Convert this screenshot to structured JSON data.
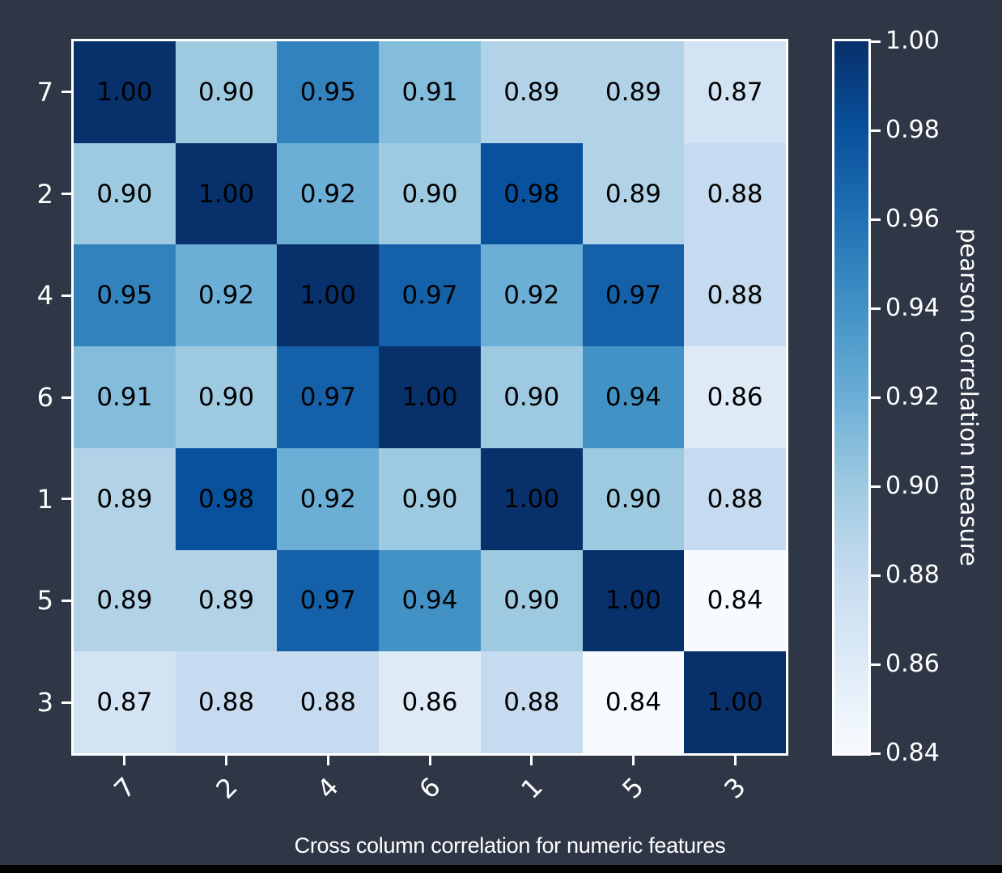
{
  "colors": {
    "background": "#2f3746",
    "axis": "#ffffff",
    "cell_text": "#000000",
    "bottom_bar": "#000000"
  },
  "chart_data": {
    "type": "heatmap",
    "title": "Cross column correlation for numeric features",
    "colorbar_label": "pearson correlation measure",
    "row_labels": [
      "7",
      "2",
      "4",
      "6",
      "1",
      "5",
      "3"
    ],
    "col_labels": [
      "7",
      "2",
      "4",
      "6",
      "1",
      "5",
      "3"
    ],
    "matrix": [
      [
        1.0,
        0.9,
        0.95,
        0.91,
        0.89,
        0.89,
        0.87
      ],
      [
        0.9,
        1.0,
        0.92,
        0.9,
        0.98,
        0.89,
        0.88
      ],
      [
        0.95,
        0.92,
        1.0,
        0.97,
        0.92,
        0.97,
        0.88
      ],
      [
        0.91,
        0.9,
        0.97,
        1.0,
        0.9,
        0.94,
        0.86
      ],
      [
        0.89,
        0.98,
        0.92,
        0.9,
        1.0,
        0.9,
        0.88
      ],
      [
        0.89,
        0.89,
        0.97,
        0.94,
        0.9,
        1.0,
        0.84
      ],
      [
        0.87,
        0.88,
        0.88,
        0.86,
        0.88,
        0.84,
        1.0
      ]
    ],
    "vmin": 0.84,
    "vmax": 1.0,
    "value_decimals": 2,
    "colorbar_ticks": [
      "1.00",
      "0.98",
      "0.96",
      "0.94",
      "0.92",
      "0.90",
      "0.88",
      "0.86",
      "0.84"
    ],
    "colormap_name": "Blues",
    "colormap_stops": [
      "#f7fbff",
      "#deebf7",
      "#c6dbef",
      "#9ecae1",
      "#6baed6",
      "#4292c6",
      "#2171b5",
      "#08519c",
      "#08306b"
    ],
    "x_tick_rotation_deg": 45,
    "legend_position": "right",
    "grid": false
  }
}
